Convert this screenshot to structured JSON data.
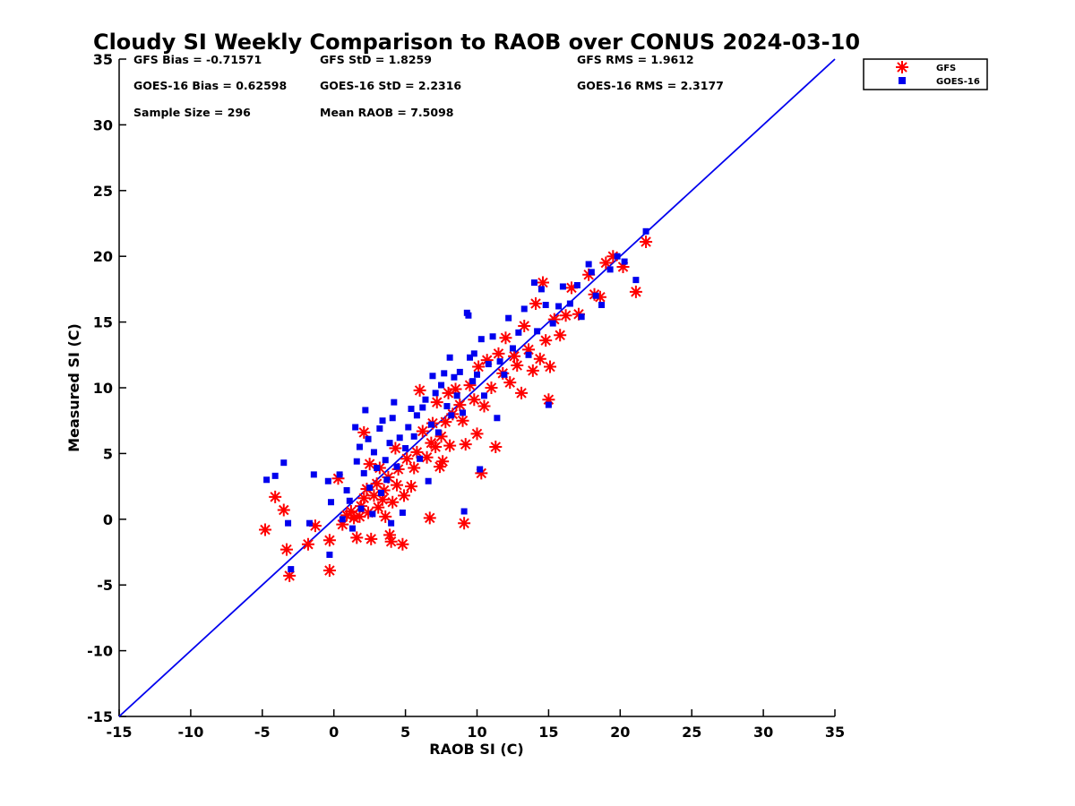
{
  "chart_data": {
    "type": "scatter",
    "title": "Cloudy SI Weekly Comparison to RAOB over CONUS 2024-03-10",
    "xlabel": "RAOB SI (C)",
    "ylabel": "Measured SI (C)",
    "xlim": [
      -15,
      35
    ],
    "ylim": [
      -15,
      35
    ],
    "xticks": [
      "-15",
      "-10",
      "-5",
      "0",
      "5",
      "10",
      "15",
      "20",
      "25",
      "30",
      "35"
    ],
    "yticks": [
      "-15",
      "-10",
      "-5",
      "0",
      "5",
      "10",
      "15",
      "20",
      "25",
      "30",
      "35"
    ],
    "grid": false,
    "legend_position": "outside-top-right",
    "reference_line": {
      "x": [
        -15,
        35
      ],
      "y": [
        -15,
        35
      ],
      "color": "#0000ee"
    },
    "stats": {
      "gfs_bias": "GFS Bias = -0.71571",
      "gfs_std": "GFS StD = 1.8259",
      "gfs_rms": "GFS RMS = 1.9612",
      "goes_bias": "GOES-16 Bias = 0.62598",
      "goes_std": "GOES-16 StD = 2.2316",
      "goes_rms": "GOES-16 RMS = 2.3177",
      "sample_size": "Sample Size = 296",
      "mean_raob": "Mean RAOB = 7.5098"
    },
    "series": [
      {
        "name": "GFS",
        "marker": "asterisk",
        "color": "#ff0000",
        "points": [
          [
            -4.8,
            -0.8
          ],
          [
            -4.1,
            1.7
          ],
          [
            -3.5,
            0.7
          ],
          [
            -3.3,
            -2.3
          ],
          [
            -3.1,
            -4.3
          ],
          [
            -1.8,
            -1.9
          ],
          [
            -1.3,
            -0.5
          ],
          [
            -0.3,
            -3.9
          ],
          [
            -0.3,
            -1.6
          ],
          [
            0.3,
            3.1
          ],
          [
            0.6,
            -0.4
          ],
          [
            0.9,
            0.3
          ],
          [
            1.2,
            0.6
          ],
          [
            1.4,
            0.1
          ],
          [
            1.6,
            -1.4
          ],
          [
            1.8,
            0.2
          ],
          [
            1.9,
            1.0
          ],
          [
            2.1,
            1.6
          ],
          [
            2.1,
            6.6
          ],
          [
            2.3,
            2.3
          ],
          [
            2.4,
            0.5
          ],
          [
            2.5,
            4.2
          ],
          [
            2.6,
            -1.5
          ],
          [
            2.8,
            1.8
          ],
          [
            3.0,
            2.7
          ],
          [
            3.1,
            0.9
          ],
          [
            3.2,
            3.9
          ],
          [
            3.4,
            1.5
          ],
          [
            3.5,
            2.2
          ],
          [
            3.6,
            0.2
          ],
          [
            3.8,
            3.2
          ],
          [
            3.9,
            -1.2
          ],
          [
            4.0,
            -1.7
          ],
          [
            4.1,
            1.3
          ],
          [
            4.3,
            5.4
          ],
          [
            4.4,
            2.6
          ],
          [
            4.5,
            3.8
          ],
          [
            4.8,
            -1.9
          ],
          [
            4.9,
            1.8
          ],
          [
            5.1,
            4.6
          ],
          [
            5.4,
            2.5
          ],
          [
            5.6,
            3.9
          ],
          [
            5.8,
            5.1
          ],
          [
            6.0,
            9.8
          ],
          [
            6.2,
            6.7
          ],
          [
            6.5,
            4.7
          ],
          [
            6.7,
            0.1
          ],
          [
            6.8,
            5.8
          ],
          [
            6.9,
            7.3
          ],
          [
            7.1,
            5.5
          ],
          [
            7.2,
            8.9
          ],
          [
            7.4,
            4.0
          ],
          [
            7.5,
            6.3
          ],
          [
            7.6,
            4.4
          ],
          [
            7.8,
            7.4
          ],
          [
            8.0,
            9.6
          ],
          [
            8.1,
            5.6
          ],
          [
            8.3,
            8.0
          ],
          [
            8.5,
            9.9
          ],
          [
            8.8,
            8.7
          ],
          [
            9.0,
            7.5
          ],
          [
            9.1,
            -0.3
          ],
          [
            9.2,
            5.7
          ],
          [
            9.5,
            10.2
          ],
          [
            9.8,
            9.1
          ],
          [
            10.0,
            6.5
          ],
          [
            10.1,
            11.6
          ],
          [
            10.3,
            3.5
          ],
          [
            10.5,
            8.6
          ],
          [
            10.7,
            12.1
          ],
          [
            11.0,
            10.0
          ],
          [
            11.3,
            5.5
          ],
          [
            11.5,
            12.6
          ],
          [
            11.8,
            11.1
          ],
          [
            12.0,
            13.8
          ],
          [
            12.3,
            10.4
          ],
          [
            12.6,
            12.4
          ],
          [
            12.8,
            11.7
          ],
          [
            13.1,
            9.6
          ],
          [
            13.3,
            14.7
          ],
          [
            13.6,
            12.9
          ],
          [
            13.9,
            11.3
          ],
          [
            14.1,
            16.4
          ],
          [
            14.4,
            12.2
          ],
          [
            14.6,
            18.0
          ],
          [
            14.8,
            13.6
          ],
          [
            15.0,
            9.1
          ],
          [
            15.1,
            11.6
          ],
          [
            15.4,
            15.2
          ],
          [
            15.8,
            14.0
          ],
          [
            16.2,
            15.5
          ],
          [
            16.6,
            17.6
          ],
          [
            17.1,
            15.6
          ],
          [
            17.8,
            18.6
          ],
          [
            18.2,
            17.1
          ],
          [
            18.6,
            16.9
          ],
          [
            19.0,
            19.5
          ],
          [
            19.5,
            20.0
          ],
          [
            20.2,
            19.2
          ],
          [
            21.1,
            17.3
          ],
          [
            21.8,
            21.1
          ]
        ]
      },
      {
        "name": "GOES-16",
        "marker": "square",
        "color": "#0000ee",
        "points": [
          [
            -4.7,
            3.0
          ],
          [
            -4.1,
            3.3
          ],
          [
            -3.5,
            4.3
          ],
          [
            -3.2,
            -0.3
          ],
          [
            -3.0,
            -3.8
          ],
          [
            -1.7,
            -0.3
          ],
          [
            -1.4,
            3.4
          ],
          [
            -0.4,
            2.9
          ],
          [
            -0.3,
            -2.7
          ],
          [
            -0.2,
            1.3
          ],
          [
            0.4,
            3.4
          ],
          [
            0.6,
            0.0
          ],
          [
            0.9,
            2.2
          ],
          [
            1.1,
            1.4
          ],
          [
            1.3,
            -0.7
          ],
          [
            1.5,
            7.0
          ],
          [
            1.6,
            4.4
          ],
          [
            1.8,
            5.5
          ],
          [
            1.9,
            0.8
          ],
          [
            2.1,
            3.5
          ],
          [
            2.2,
            8.3
          ],
          [
            2.4,
            6.1
          ],
          [
            2.5,
            2.4
          ],
          [
            2.7,
            0.4
          ],
          [
            2.8,
            5.1
          ],
          [
            3.0,
            3.9
          ],
          [
            3.2,
            6.9
          ],
          [
            3.3,
            2.0
          ],
          [
            3.4,
            7.5
          ],
          [
            3.6,
            4.5
          ],
          [
            3.7,
            3.0
          ],
          [
            3.9,
            5.8
          ],
          [
            4.0,
            -0.3
          ],
          [
            4.1,
            7.7
          ],
          [
            4.2,
            8.9
          ],
          [
            4.4,
            4.0
          ],
          [
            4.6,
            6.2
          ],
          [
            4.8,
            0.5
          ],
          [
            5.0,
            5.4
          ],
          [
            5.2,
            7.0
          ],
          [
            5.4,
            8.4
          ],
          [
            5.6,
            6.3
          ],
          [
            5.8,
            7.9
          ],
          [
            6.0,
            4.6
          ],
          [
            6.2,
            8.5
          ],
          [
            6.4,
            9.1
          ],
          [
            6.6,
            2.9
          ],
          [
            6.8,
            7.2
          ],
          [
            6.9,
            10.9
          ],
          [
            7.1,
            9.6
          ],
          [
            7.3,
            6.6
          ],
          [
            7.5,
            10.2
          ],
          [
            7.7,
            11.1
          ],
          [
            7.9,
            8.6
          ],
          [
            8.1,
            12.3
          ],
          [
            8.2,
            7.9
          ],
          [
            8.4,
            10.8
          ],
          [
            8.6,
            9.4
          ],
          [
            8.8,
            11.2
          ],
          [
            9.0,
            8.1
          ],
          [
            9.1,
            0.6
          ],
          [
            9.3,
            15.7
          ],
          [
            9.4,
            15.5
          ],
          [
            9.5,
            12.3
          ],
          [
            9.7,
            10.5
          ],
          [
            9.8,
            12.6
          ],
          [
            10.0,
            11.0
          ],
          [
            10.2,
            3.8
          ],
          [
            10.3,
            13.7
          ],
          [
            10.5,
            9.4
          ],
          [
            10.8,
            11.8
          ],
          [
            11.1,
            13.9
          ],
          [
            11.4,
            7.7
          ],
          [
            11.6,
            12.0
          ],
          [
            11.9,
            11.0
          ],
          [
            12.2,
            15.3
          ],
          [
            12.5,
            13.0
          ],
          [
            12.9,
            14.2
          ],
          [
            13.3,
            16.0
          ],
          [
            13.6,
            12.5
          ],
          [
            14.0,
            18.0
          ],
          [
            14.2,
            14.3
          ],
          [
            14.5,
            17.5
          ],
          [
            14.8,
            16.3
          ],
          [
            15.0,
            8.7
          ],
          [
            15.3,
            14.9
          ],
          [
            15.7,
            16.2
          ],
          [
            16.0,
            17.7
          ],
          [
            16.5,
            16.4
          ],
          [
            17.0,
            17.8
          ],
          [
            17.3,
            15.4
          ],
          [
            17.8,
            19.4
          ],
          [
            18.0,
            18.8
          ],
          [
            18.3,
            17.0
          ],
          [
            18.7,
            16.3
          ],
          [
            19.3,
            19.0
          ],
          [
            19.8,
            20.0
          ],
          [
            20.3,
            19.6
          ],
          [
            21.1,
            18.2
          ],
          [
            21.8,
            21.9
          ]
        ]
      }
    ]
  }
}
